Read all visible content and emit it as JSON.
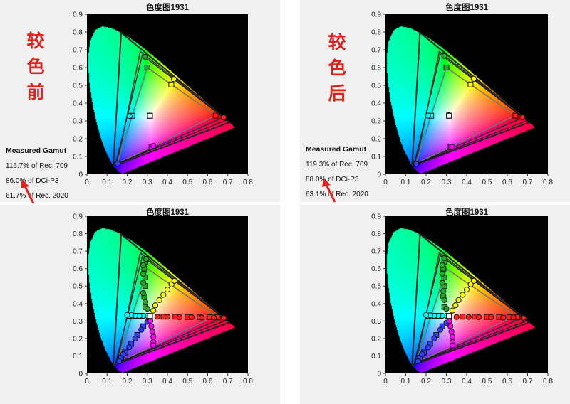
{
  "colors": {
    "accent_red": "#e0201a",
    "panel_bg": "#f0f0f0",
    "plot_bg": "#000000"
  },
  "panels": [
    {
      "id": "tl",
      "side_label": [
        "较",
        "色",
        "前"
      ],
      "gamut": {
        "title": "Measured Gamut",
        "rec709": "116.7% of Rec. 709",
        "dcip3": "86.0% of DCi-P3",
        "rec2020": "61.7% of Rec. 2020"
      }
    },
    {
      "id": "tr",
      "side_label": [
        "较",
        "色",
        "后"
      ],
      "gamut": {
        "title": "Measured Gamut",
        "rec709": "119.3% of Rec. 709",
        "dcip3": "88.0% of DCi-P3",
        "rec2020": "63.1% of Rec. 2020"
      }
    },
    {
      "id": "bl"
    },
    {
      "id": "br"
    }
  ],
  "chart_data": [
    {
      "type": "scatter",
      "title": "色度图1931",
      "x_ticks": [
        "0",
        "0.1",
        "0.2",
        "0.3",
        "0.4",
        "0.5",
        "0.6",
        "0.7",
        "0.8"
      ],
      "y_ticks": [
        "0",
        "0.1",
        "0.2",
        "0.3",
        "0.4",
        "0.5",
        "0.6",
        "0.7",
        "0.8",
        "0.9"
      ],
      "xlim": [
        0,
        0.8
      ],
      "ylim": [
        0,
        0.9
      ],
      "reference_gamuts": {
        "rec709": [
          [
            0.64,
            0.33
          ],
          [
            0.3,
            0.6
          ],
          [
            0.15,
            0.06
          ]
        ],
        "dcip3": [
          [
            0.68,
            0.32
          ],
          [
            0.265,
            0.69
          ],
          [
            0.15,
            0.06
          ]
        ],
        "rec2020": [
          [
            0.708,
            0.292
          ],
          [
            0.17,
            0.797
          ],
          [
            0.131,
            0.046
          ]
        ]
      },
      "measured_primaries": {
        "red": [
          0.695,
          0.305
        ],
        "green": [
          0.275,
          0.67
        ],
        "blue": [
          0.143,
          0.058
        ]
      },
      "white": [
        0.313,
        0.329
      ],
      "targets": [
        {
          "x": 0.64,
          "y": 0.33,
          "c": "#ff2020"
        },
        {
          "x": 0.3,
          "y": 0.6,
          "c": "#22aa22"
        },
        {
          "x": 0.15,
          "y": 0.06,
          "c": "#3040ff"
        },
        {
          "x": 0.225,
          "y": 0.329,
          "c": "#00ffff"
        },
        {
          "x": 0.321,
          "y": 0.154,
          "c": "#ff00ff"
        },
        {
          "x": 0.419,
          "y": 0.505,
          "c": "#ffff00"
        }
      ],
      "measured": [
        {
          "x": 0.68,
          "y": 0.32,
          "c": "#ff2020"
        },
        {
          "x": 0.29,
          "y": 0.66,
          "c": "#22aa22"
        },
        {
          "x": 0.153,
          "y": 0.06,
          "c": "#3040ff"
        },
        {
          "x": 0.212,
          "y": 0.328,
          "c": "#00ffff"
        },
        {
          "x": 0.33,
          "y": 0.16,
          "c": "#ff00ff"
        },
        {
          "x": 0.432,
          "y": 0.535,
          "c": "#ffff00"
        },
        {
          "x": 0.312,
          "y": 0.33,
          "c": "#111111"
        }
      ]
    },
    {
      "type": "scatter",
      "title": "色度图1931",
      "x_ticks": [
        "0",
        "0.1",
        "0.2",
        "0.3",
        "0.4",
        "0.5",
        "0.6",
        "0.7",
        "0.8"
      ],
      "y_ticks": [
        "0",
        "0.1",
        "0.2",
        "0.3",
        "0.4",
        "0.5",
        "0.6",
        "0.7",
        "0.8",
        "0.9"
      ],
      "xlim": [
        0,
        0.8
      ],
      "ylim": [
        0,
        0.9
      ],
      "reference_gamuts": {
        "rec709": [
          [
            0.64,
            0.33
          ],
          [
            0.3,
            0.6
          ],
          [
            0.15,
            0.06
          ]
        ],
        "dcip3": [
          [
            0.68,
            0.32
          ],
          [
            0.265,
            0.69
          ],
          [
            0.15,
            0.06
          ]
        ],
        "rec2020": [
          [
            0.708,
            0.292
          ],
          [
            0.17,
            0.797
          ],
          [
            0.131,
            0.046
          ]
        ]
      },
      "measured_primaries": {
        "red": [
          0.698,
          0.302
        ],
        "green": [
          0.27,
          0.675
        ],
        "blue": [
          0.142,
          0.056
        ]
      },
      "white": [
        0.313,
        0.329
      ],
      "targets": [
        {
          "x": 0.64,
          "y": 0.33,
          "c": "#ff2020"
        },
        {
          "x": 0.3,
          "y": 0.6,
          "c": "#22aa22"
        },
        {
          "x": 0.15,
          "y": 0.06,
          "c": "#3040ff"
        },
        {
          "x": 0.225,
          "y": 0.329,
          "c": "#00ffff"
        },
        {
          "x": 0.321,
          "y": 0.154,
          "c": "#ff00ff"
        },
        {
          "x": 0.419,
          "y": 0.505,
          "c": "#ffff00"
        }
      ],
      "measured": [
        {
          "x": 0.675,
          "y": 0.32,
          "c": "#ff2020"
        },
        {
          "x": 0.29,
          "y": 0.665,
          "c": "#22aa22"
        },
        {
          "x": 0.152,
          "y": 0.058,
          "c": "#3040ff"
        },
        {
          "x": 0.21,
          "y": 0.33,
          "c": "#00ffff"
        },
        {
          "x": 0.328,
          "y": 0.155,
          "c": "#ff00ff"
        },
        {
          "x": 0.435,
          "y": 0.537,
          "c": "#ffff00"
        },
        {
          "x": 0.313,
          "y": 0.333,
          "c": "#111111"
        }
      ]
    },
    {
      "type": "scatter",
      "title": "色度图1931",
      "x_ticks": [
        "0",
        "0.1",
        "0.2",
        "0.3",
        "0.4",
        "0.5",
        "0.6",
        "0.7",
        "0.8"
      ],
      "y_ticks": [
        "0",
        "0.1",
        "0.2",
        "0.3",
        "0.4",
        "0.5",
        "0.6",
        "0.7",
        "0.8",
        "0.9"
      ],
      "xlim": [
        0,
        0.8
      ],
      "ylim": [
        0,
        0.9
      ],
      "reference_gamuts": {
        "rec709": [
          [
            0.64,
            0.33
          ],
          [
            0.3,
            0.6
          ],
          [
            0.15,
            0.06
          ]
        ],
        "dcip3": [
          [
            0.68,
            0.32
          ],
          [
            0.265,
            0.69
          ],
          [
            0.15,
            0.06
          ]
        ],
        "rec2020": [
          [
            0.708,
            0.292
          ],
          [
            0.17,
            0.797
          ],
          [
            0.131,
            0.046
          ]
        ]
      },
      "measured_primaries": {
        "red": [
          0.695,
          0.305
        ],
        "green": [
          0.275,
          0.67
        ],
        "blue": [
          0.143,
          0.058
        ]
      },
      "white": [
        0.313,
        0.329
      ],
      "targets": [
        {
          "x": 0.38,
          "y": 0.325,
          "c": "#ff2020"
        },
        {
          "x": 0.44,
          "y": 0.325,
          "c": "#ff2020"
        },
        {
          "x": 0.5,
          "y": 0.323,
          "c": "#ff2020"
        },
        {
          "x": 0.56,
          "y": 0.323,
          "c": "#ff2020"
        },
        {
          "x": 0.61,
          "y": 0.322,
          "c": "#ff2020"
        },
        {
          "x": 0.65,
          "y": 0.322,
          "c": "#ff2020"
        },
        {
          "x": 0.29,
          "y": 0.38,
          "c": "#22aa22"
        },
        {
          "x": 0.285,
          "y": 0.44,
          "c": "#22aa22"
        },
        {
          "x": 0.29,
          "y": 0.5,
          "c": "#22aa22"
        },
        {
          "x": 0.29,
          "y": 0.55,
          "c": "#22aa22"
        },
        {
          "x": 0.285,
          "y": 0.6,
          "c": "#22aa22"
        },
        {
          "x": 0.29,
          "y": 0.64,
          "c": "#22aa22"
        },
        {
          "x": 0.28,
          "y": 0.27,
          "c": "#3040ff"
        },
        {
          "x": 0.25,
          "y": 0.22,
          "c": "#3040ff"
        },
        {
          "x": 0.22,
          "y": 0.17,
          "c": "#3040ff"
        },
        {
          "x": 0.19,
          "y": 0.12,
          "c": "#3040ff"
        },
        {
          "x": 0.17,
          "y": 0.09,
          "c": "#3040ff"
        },
        {
          "x": 0.27,
          "y": 0.33,
          "c": "#00ffff"
        },
        {
          "x": 0.24,
          "y": 0.33,
          "c": "#00ffff"
        },
        {
          "x": 0.21,
          "y": 0.33,
          "c": "#00ffff"
        }
      ],
      "measured": [
        {
          "x": 0.35,
          "y": 0.325,
          "c": "#ff2020"
        },
        {
          "x": 0.4,
          "y": 0.325,
          "c": "#ff2020"
        },
        {
          "x": 0.46,
          "y": 0.322,
          "c": "#ff2020"
        },
        {
          "x": 0.52,
          "y": 0.322,
          "c": "#ff2020"
        },
        {
          "x": 0.57,
          "y": 0.32,
          "c": "#ff2020"
        },
        {
          "x": 0.63,
          "y": 0.32,
          "c": "#ff2020"
        },
        {
          "x": 0.68,
          "y": 0.318,
          "c": "#ff2020"
        },
        {
          "x": 0.3,
          "y": 0.37,
          "c": "#22aa22"
        },
        {
          "x": 0.29,
          "y": 0.41,
          "c": "#22aa22"
        },
        {
          "x": 0.28,
          "y": 0.46,
          "c": "#22aa22"
        },
        {
          "x": 0.28,
          "y": 0.52,
          "c": "#22aa22"
        },
        {
          "x": 0.28,
          "y": 0.57,
          "c": "#22aa22"
        },
        {
          "x": 0.28,
          "y": 0.62,
          "c": "#22aa22"
        },
        {
          "x": 0.295,
          "y": 0.655,
          "c": "#22aa22"
        },
        {
          "x": 0.3,
          "y": 0.295,
          "c": "#3040ff"
        },
        {
          "x": 0.27,
          "y": 0.25,
          "c": "#3040ff"
        },
        {
          "x": 0.24,
          "y": 0.2,
          "c": "#3040ff"
        },
        {
          "x": 0.21,
          "y": 0.15,
          "c": "#3040ff"
        },
        {
          "x": 0.18,
          "y": 0.11,
          "c": "#3040ff"
        },
        {
          "x": 0.16,
          "y": 0.07,
          "c": "#3040ff"
        },
        {
          "x": 0.3,
          "y": 0.33,
          "c": "#00ffff"
        },
        {
          "x": 0.28,
          "y": 0.33,
          "c": "#00ffff"
        },
        {
          "x": 0.26,
          "y": 0.33,
          "c": "#00ffff"
        },
        {
          "x": 0.24,
          "y": 0.33,
          "c": "#00ffff"
        },
        {
          "x": 0.22,
          "y": 0.335,
          "c": "#00ffff"
        },
        {
          "x": 0.2,
          "y": 0.335,
          "c": "#00ffff"
        },
        {
          "x": 0.315,
          "y": 0.3,
          "c": "#ff00ff"
        },
        {
          "x": 0.32,
          "y": 0.27,
          "c": "#ff00ff"
        },
        {
          "x": 0.325,
          "y": 0.24,
          "c": "#ff00ff"
        },
        {
          "x": 0.33,
          "y": 0.21,
          "c": "#ff00ff"
        },
        {
          "x": 0.33,
          "y": 0.18,
          "c": "#ff00ff"
        },
        {
          "x": 0.33,
          "y": 0.16,
          "c": "#ff00ff"
        },
        {
          "x": 0.33,
          "y": 0.36,
          "c": "#ffff00"
        },
        {
          "x": 0.34,
          "y": 0.39,
          "c": "#ffff00"
        },
        {
          "x": 0.36,
          "y": 0.42,
          "c": "#ffff00"
        },
        {
          "x": 0.38,
          "y": 0.45,
          "c": "#ffff00"
        },
        {
          "x": 0.4,
          "y": 0.48,
          "c": "#ffff00"
        },
        {
          "x": 0.42,
          "y": 0.51,
          "c": "#ffff00"
        },
        {
          "x": 0.435,
          "y": 0.53,
          "c": "#ffff00"
        }
      ]
    },
    {
      "type": "scatter",
      "title": "色度图1931",
      "x_ticks": [
        "0",
        "0.1",
        "0.2",
        "0.3",
        "0.4",
        "0.5",
        "0.6",
        "0.7",
        "0.8"
      ],
      "y_ticks": [
        "0",
        "0.1",
        "0.2",
        "0.3",
        "0.4",
        "0.5",
        "0.6",
        "0.7",
        "0.8",
        "0.9"
      ],
      "xlim": [
        0,
        0.8
      ],
      "ylim": [
        0,
        0.9
      ],
      "reference_gamuts": {
        "rec709": [
          [
            0.64,
            0.33
          ],
          [
            0.3,
            0.6
          ],
          [
            0.15,
            0.06
          ]
        ],
        "dcip3": [
          [
            0.68,
            0.32
          ],
          [
            0.265,
            0.69
          ],
          [
            0.15,
            0.06
          ]
        ],
        "rec2020": [
          [
            0.708,
            0.292
          ],
          [
            0.17,
            0.797
          ],
          [
            0.131,
            0.046
          ]
        ]
      },
      "measured_primaries": {
        "red": [
          0.698,
          0.302
        ],
        "green": [
          0.27,
          0.675
        ],
        "blue": [
          0.142,
          0.056
        ]
      },
      "white": [
        0.313,
        0.329
      ],
      "targets": [
        {
          "x": 0.38,
          "y": 0.325,
          "c": "#ff2020"
        },
        {
          "x": 0.44,
          "y": 0.325,
          "c": "#ff2020"
        },
        {
          "x": 0.5,
          "y": 0.323,
          "c": "#ff2020"
        },
        {
          "x": 0.56,
          "y": 0.323,
          "c": "#ff2020"
        },
        {
          "x": 0.61,
          "y": 0.322,
          "c": "#ff2020"
        },
        {
          "x": 0.65,
          "y": 0.322,
          "c": "#ff2020"
        },
        {
          "x": 0.29,
          "y": 0.38,
          "c": "#22aa22"
        },
        {
          "x": 0.285,
          "y": 0.44,
          "c": "#22aa22"
        },
        {
          "x": 0.29,
          "y": 0.5,
          "c": "#22aa22"
        },
        {
          "x": 0.29,
          "y": 0.55,
          "c": "#22aa22"
        },
        {
          "x": 0.285,
          "y": 0.6,
          "c": "#22aa22"
        },
        {
          "x": 0.29,
          "y": 0.64,
          "c": "#22aa22"
        },
        {
          "x": 0.28,
          "y": 0.27,
          "c": "#3040ff"
        },
        {
          "x": 0.25,
          "y": 0.22,
          "c": "#3040ff"
        },
        {
          "x": 0.22,
          "y": 0.17,
          "c": "#3040ff"
        },
        {
          "x": 0.19,
          "y": 0.12,
          "c": "#3040ff"
        },
        {
          "x": 0.17,
          "y": 0.09,
          "c": "#3040ff"
        },
        {
          "x": 0.27,
          "y": 0.33,
          "c": "#00ffff"
        },
        {
          "x": 0.24,
          "y": 0.33,
          "c": "#00ffff"
        },
        {
          "x": 0.21,
          "y": 0.33,
          "c": "#00ffff"
        }
      ],
      "measured": [
        {
          "x": 0.35,
          "y": 0.323,
          "c": "#ff2020"
        },
        {
          "x": 0.41,
          "y": 0.323,
          "c": "#ff2020"
        },
        {
          "x": 0.46,
          "y": 0.322,
          "c": "#ff2020"
        },
        {
          "x": 0.52,
          "y": 0.322,
          "c": "#ff2020"
        },
        {
          "x": 0.58,
          "y": 0.32,
          "c": "#ff2020"
        },
        {
          "x": 0.63,
          "y": 0.32,
          "c": "#ff2020"
        },
        {
          "x": 0.68,
          "y": 0.318,
          "c": "#ff2020"
        },
        {
          "x": 0.3,
          "y": 0.37,
          "c": "#22aa22"
        },
        {
          "x": 0.29,
          "y": 0.42,
          "c": "#22aa22"
        },
        {
          "x": 0.285,
          "y": 0.47,
          "c": "#22aa22"
        },
        {
          "x": 0.28,
          "y": 0.52,
          "c": "#22aa22"
        },
        {
          "x": 0.28,
          "y": 0.57,
          "c": "#22aa22"
        },
        {
          "x": 0.28,
          "y": 0.62,
          "c": "#22aa22"
        },
        {
          "x": 0.29,
          "y": 0.66,
          "c": "#22aa22"
        },
        {
          "x": 0.3,
          "y": 0.29,
          "c": "#3040ff"
        },
        {
          "x": 0.27,
          "y": 0.25,
          "c": "#3040ff"
        },
        {
          "x": 0.24,
          "y": 0.2,
          "c": "#3040ff"
        },
        {
          "x": 0.21,
          "y": 0.15,
          "c": "#3040ff"
        },
        {
          "x": 0.18,
          "y": 0.11,
          "c": "#3040ff"
        },
        {
          "x": 0.16,
          "y": 0.07,
          "c": "#3040ff"
        },
        {
          "x": 0.3,
          "y": 0.33,
          "c": "#00ffff"
        },
        {
          "x": 0.28,
          "y": 0.33,
          "c": "#00ffff"
        },
        {
          "x": 0.26,
          "y": 0.33,
          "c": "#00ffff"
        },
        {
          "x": 0.24,
          "y": 0.33,
          "c": "#00ffff"
        },
        {
          "x": 0.22,
          "y": 0.333,
          "c": "#00ffff"
        },
        {
          "x": 0.2,
          "y": 0.335,
          "c": "#00ffff"
        },
        {
          "x": 0.315,
          "y": 0.3,
          "c": "#ff00ff"
        },
        {
          "x": 0.32,
          "y": 0.27,
          "c": "#ff00ff"
        },
        {
          "x": 0.325,
          "y": 0.24,
          "c": "#ff00ff"
        },
        {
          "x": 0.33,
          "y": 0.21,
          "c": "#ff00ff"
        },
        {
          "x": 0.33,
          "y": 0.18,
          "c": "#ff00ff"
        },
        {
          "x": 0.33,
          "y": 0.16,
          "c": "#ff00ff"
        },
        {
          "x": 0.33,
          "y": 0.36,
          "c": "#ffff00"
        },
        {
          "x": 0.345,
          "y": 0.39,
          "c": "#ffff00"
        },
        {
          "x": 0.36,
          "y": 0.42,
          "c": "#ffff00"
        },
        {
          "x": 0.38,
          "y": 0.45,
          "c": "#ffff00"
        },
        {
          "x": 0.4,
          "y": 0.48,
          "c": "#ffff00"
        },
        {
          "x": 0.42,
          "y": 0.51,
          "c": "#ffff00"
        },
        {
          "x": 0.435,
          "y": 0.53,
          "c": "#ffff00"
        }
      ]
    }
  ]
}
